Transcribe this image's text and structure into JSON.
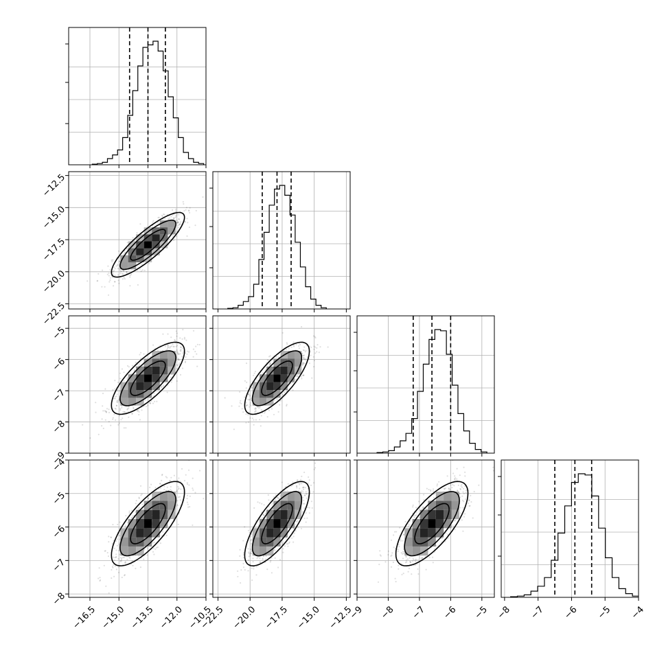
{
  "chart_data": {
    "type": "corner",
    "description_free": true,
    "params": [
      {
        "range": [
          -17.6,
          -10.5
        ],
        "ticks": [
          -16.5,
          -15.0,
          -13.5,
          -12.0,
          -10.5
        ],
        "tick_labels": [
          "−16.5",
          "−15.0",
          "−13.5",
          "−12.0",
          "−10.5"
        ],
        "mean": -13.5,
        "sd": 0.9,
        "quantiles": [
          -14.45,
          -13.5,
          -12.6
        ]
      },
      {
        "range": [
          -22.9,
          -12.2
        ],
        "ticks": [
          -22.5,
          -20.0,
          -17.5,
          -15.0,
          -12.5
        ],
        "tick_labels": [
          "−22.5",
          "−20.0",
          "−17.5",
          "−15.0",
          "−12.5"
        ],
        "mean": -17.9,
        "sd": 1.2,
        "quantiles": [
          -19.05,
          -17.9,
          -16.8
        ]
      },
      {
        "range": [
          -9.0,
          -4.6
        ],
        "ticks": [
          -9,
          -8,
          -7,
          -6,
          -5
        ],
        "tick_labels": [
          "−9",
          "−8",
          "−7",
          "−6",
          "−5"
        ],
        "mean": -6.6,
        "sd": 0.55,
        "quantiles": [
          -7.2,
          -6.6,
          -6.0
        ]
      },
      {
        "range": [
          -8.1,
          -4.0
        ],
        "ticks": [
          -8,
          -7,
          -6,
          -5,
          -4
        ],
        "tick_labels": [
          "−8",
          "−7",
          "−6",
          "−5",
          "−4"
        ],
        "mean": -5.9,
        "sd": 0.6,
        "quantiles": [
          -6.5,
          -5.9,
          -5.4
        ]
      }
    ],
    "correlations": [
      [
        1,
        0.85,
        0.75,
        0.75
      ],
      [
        0.85,
        1,
        0.75,
        0.75
      ],
      [
        0.75,
        0.75,
        1,
        0.72
      ],
      [
        0.75,
        0.75,
        0.72,
        1
      ]
    ],
    "histograms": [
      [
        0.5,
        1,
        2,
        5,
        8,
        12,
        22,
        40,
        60,
        80,
        95,
        97,
        100,
        92,
        76,
        55,
        38,
        22,
        10,
        5,
        2,
        1
      ],
      [
        0.5,
        1,
        3,
        6,
        10,
        20,
        40,
        62,
        84,
        97,
        100,
        92,
        76,
        54,
        34,
        18,
        8,
        3,
        1
      ],
      [
        0.5,
        1,
        2,
        5,
        10,
        16,
        28,
        50,
        72,
        92,
        100,
        99,
        80,
        55,
        32,
        18,
        8,
        3,
        1
      ],
      [
        0.5,
        1,
        2,
        5,
        9,
        16,
        30,
        52,
        74,
        93,
        100,
        99,
        82,
        56,
        32,
        16,
        7,
        3,
        1
      ]
    ],
    "grid": true,
    "contour_levels": 3
  }
}
